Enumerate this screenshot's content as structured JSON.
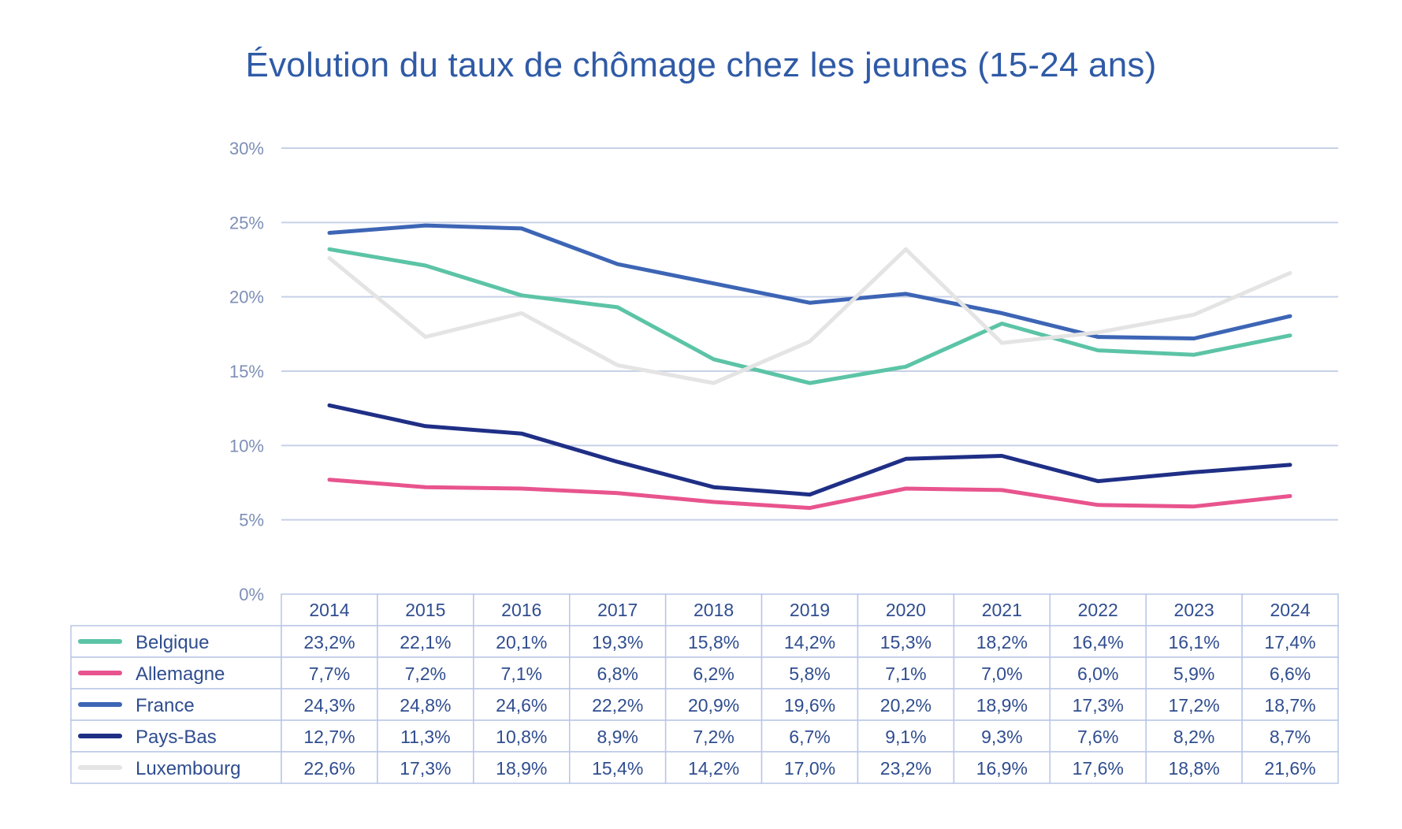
{
  "chart_data": {
    "type": "line",
    "title": "Évolution du taux de chômage chez les jeunes (15-24 ans)",
    "xlabel": "",
    "ylabel": "",
    "ylim": [
      0,
      30
    ],
    "ytick_labels": [
      "0%",
      "5%",
      "10%",
      "15%",
      "20%",
      "25%",
      "30%"
    ],
    "grid": true,
    "legend": "table-below",
    "categories": [
      "2014",
      "2015",
      "2016",
      "2017",
      "2018",
      "2019",
      "2020",
      "2021",
      "2022",
      "2023",
      "2024"
    ],
    "series": [
      {
        "name": "Belgique",
        "color": "#5cc4a6",
        "values": [
          23.2,
          22.1,
          20.1,
          19.3,
          15.8,
          14.2,
          15.3,
          18.2,
          16.4,
          16.1,
          17.4
        ],
        "labels": [
          "23,2%",
          "22,1%",
          "20,1%",
          "19,3%",
          "15,8%",
          "14,2%",
          "15,3%",
          "18,2%",
          "16,4%",
          "16,1%",
          "17,4%"
        ]
      },
      {
        "name": "Allemagne",
        "color": "#e8548e",
        "values": [
          7.7,
          7.2,
          7.1,
          6.8,
          6.2,
          5.8,
          7.1,
          7.0,
          6.0,
          5.9,
          6.6
        ],
        "labels": [
          "7,7%",
          "7,2%",
          "7,1%",
          "6,8%",
          "6,2%",
          "5,8%",
          "7,1%",
          "7,0%",
          "6,0%",
          "5,9%",
          "6,6%"
        ]
      },
      {
        "name": "France",
        "color": "#3d65b5",
        "values": [
          24.3,
          24.8,
          24.6,
          22.2,
          20.9,
          19.6,
          20.2,
          18.9,
          17.3,
          17.2,
          18.7
        ],
        "labels": [
          "24,3%",
          "24,8%",
          "24,6%",
          "22,2%",
          "20,9%",
          "19,6%",
          "20,2%",
          "18,9%",
          "17,3%",
          "17,2%",
          "18,7%"
        ]
      },
      {
        "name": "Pays-Bas",
        "color": "#1f2f86",
        "values": [
          12.7,
          11.3,
          10.8,
          8.9,
          7.2,
          6.7,
          9.1,
          9.3,
          7.6,
          8.2,
          8.7
        ],
        "labels": [
          "12,7%",
          "11,3%",
          "10,8%",
          "8,9%",
          "7,2%",
          "6,7%",
          "9,1%",
          "9,3%",
          "7,6%",
          "8,2%",
          "8,7%"
        ]
      },
      {
        "name": "Luxembourg",
        "color": "#e4e4e4",
        "values": [
          22.6,
          17.3,
          18.9,
          15.4,
          14.2,
          17.0,
          23.2,
          16.9,
          17.6,
          18.8,
          21.6
        ],
        "labels": [
          "22,6%",
          "17,3%",
          "18,9%",
          "15,4%",
          "14,2%",
          "17,0%",
          "23,2%",
          "16,9%",
          "17,6%",
          "18,8%",
          "21,6%"
        ]
      }
    ]
  }
}
